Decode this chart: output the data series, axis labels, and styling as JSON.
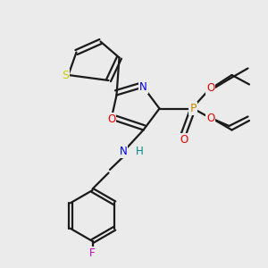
{
  "background_color": "#ebebeb",
  "bond_color": "#1a1a1a",
  "atom_colors": {
    "S": "#cccc00",
    "N": "#0000ee",
    "O": "#ee0000",
    "P": "#cc8800",
    "F": "#cc00cc",
    "H": "#008888",
    "C": "#1a1a1a"
  },
  "figsize": [
    3.0,
    3.0
  ],
  "dpi": 100
}
